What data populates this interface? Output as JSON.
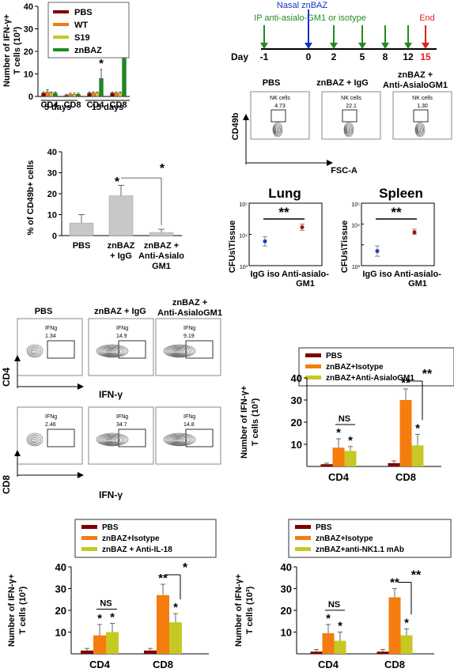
{
  "colors": {
    "pbs": "#7f0000",
    "wt": "#f07a10",
    "s19": "#c6c62a",
    "znbaz": "#1f8a1f",
    "isotype": "#f57c0f",
    "treated": "#c7c824",
    "gray_bar": "#c8c8c8",
    "dark_bar": "#a6a6a6",
    "nasal_arrow": "#1432c8",
    "ip_arrow": "#228b22",
    "end_arrow": "#e02020",
    "lung_dot_1": "#1a3ad0",
    "lung_dot_2": "#a01010"
  },
  "panelA": {
    "ylabel_1": "Number  of IFN-γ+",
    "ylabel_2": "T cells (10³)",
    "legend": [
      "PBS",
      "WT",
      "S19",
      "znBAZ"
    ],
    "groups": [
      "CD4",
      "CD8",
      "CD4",
      "CD8"
    ],
    "periods": [
      "5 days",
      "15 days"
    ],
    "stars": [
      "*",
      "**"
    ]
  },
  "timeline": {
    "nasal_label": "Nasal znBAZ",
    "ip_label": "IP anti-asialo-GM1 or isotype",
    "end_label": "End",
    "day_label": "Day",
    "days": [
      "-1",
      "0",
      "2",
      "5",
      "8",
      "12",
      "15"
    ]
  },
  "flowNK": {
    "titles": [
      "PBS",
      "znBAZ + IgG",
      "znBAZ +"
    ],
    "title_line2": "Anti-AsialoGM1",
    "gate_label": "NK cells",
    "values": [
      "4.73",
      "22.1",
      "1.30"
    ],
    "ylabel": "CD49b",
    "xlabel": "FSC-A"
  },
  "panelCD49": {
    "ylabel": "% of CD49b+ cells",
    "xlabels": [
      [
        "PBS"
      ],
      [
        "znBAZ",
        "+ IgG"
      ],
      [
        "znBAZ +",
        "Anti-Asialo",
        "GM1"
      ]
    ],
    "stars": [
      "*",
      "*"
    ]
  },
  "cfu": {
    "ylabel": "CFUs\\Tissue",
    "titles": [
      "Lung",
      "Spleen"
    ],
    "xlabels": [
      [
        "IgG iso"
      ],
      [
        "Anti-asialo-",
        "GM1"
      ]
    ],
    "stars": "**",
    "ticks": [
      "10⁵",
      "10⁴",
      "10³"
    ]
  },
  "flowIFN": {
    "titles": [
      "PBS",
      "znBAZ + IgG",
      "znBAZ +"
    ],
    "title_line2": "Anti-AsialoGM1",
    "gate_label": "IFNg",
    "cd4_values": [
      "1.34",
      "14.9",
      "9.19"
    ],
    "cd8_values": [
      "2.46",
      "34.7",
      "14.8"
    ],
    "cd4_label": "CD4",
    "cd8_label": "CD8",
    "xlabel": "IFN-γ"
  },
  "yaxis_ifn": {
    "line1": "Number  of IFN-γ+",
    "line2": "T cells (10³)"
  },
  "groupLabels": [
    "CD4",
    "CD8"
  ],
  "sigLabels": {
    "ns": "NS",
    "one": "*",
    "two": "**"
  },
  "chart_data": [
    {
      "type": "bar",
      "id": "panelA",
      "categories": [
        "CD4 5 days",
        "CD8 5 days",
        "CD4 15 days",
        "CD8 15 days"
      ],
      "series": [
        {
          "name": "PBS",
          "values": [
            1.5,
            0.5,
            1.5,
            1.5
          ],
          "errors": [
            0.5,
            0.5,
            0.5,
            0.5
          ]
        },
        {
          "name": "WT",
          "values": [
            2.0,
            1.0,
            1.5,
            1.5
          ],
          "errors": [
            1.0,
            0.5,
            0.5,
            0.5
          ]
        },
        {
          "name": "S19",
          "values": [
            1.5,
            1.0,
            1.5,
            1.5
          ],
          "errors": [
            0.5,
            0.5,
            0.5,
            0.5
          ]
        },
        {
          "name": "znBAZ",
          "values": [
            1.5,
            1.0,
            8.0,
            26.5
          ],
          "errors": [
            0.5,
            0.5,
            4.0,
            6.0
          ]
        }
      ],
      "ylim": [
        0,
        40
      ],
      "yticks": [
        0,
        10,
        20,
        30,
        40
      ]
    },
    {
      "type": "bar",
      "id": "panelCD49",
      "categories": [
        "PBS",
        "znBAZ + IgG",
        "znBAZ + Anti-Asialo GM1"
      ],
      "values": [
        6,
        19,
        1.5
      ],
      "errors": [
        4,
        5,
        1.5
      ],
      "ylim": [
        0,
        40
      ],
      "yticks": [
        0,
        10,
        20,
        30,
        40
      ]
    },
    {
      "type": "scatter",
      "id": "lung",
      "categories": [
        "IgG iso",
        "Anti-asialo-GM1"
      ],
      "values": [
        6000,
        17000
      ],
      "errors_log_low": [
        0.15,
        0.1
      ],
      "errors_log_high": [
        0.15,
        0.1
      ],
      "ylim": [
        1000,
        100000
      ],
      "yscale": "log"
    },
    {
      "type": "scatter",
      "id": "spleen",
      "categories": [
        "IgG iso",
        "Anti-asialo-GM1"
      ],
      "values": [
        500,
        4000
      ],
      "errors_log_low": [
        0.25,
        0.1
      ],
      "errors_log_high": [
        0.25,
        0.15
      ],
      "ylim": [
        100,
        100000
      ],
      "yscale": "log"
    },
    {
      "type": "bar",
      "id": "asialo_ifn",
      "categories": [
        "CD4",
        "CD8"
      ],
      "series": [
        {
          "name": "PBS",
          "values": [
            1,
            1.5
          ],
          "errors": [
            0.5,
            1
          ]
        },
        {
          "name": "znBAZ+Isotype",
          "values": [
            8.5,
            30
          ],
          "errors": [
            4,
            5
          ]
        },
        {
          "name": "znBAZ+Anti-AsialoGM1",
          "values": [
            7,
            9.5
          ],
          "errors": [
            2,
            5
          ]
        }
      ],
      "ylim": [
        0,
        40
      ],
      "yticks": [
        10,
        20,
        30,
        40
      ]
    },
    {
      "type": "bar",
      "id": "il18",
      "categories": [
        "CD4",
        "CD8"
      ],
      "series": [
        {
          "name": "PBS",
          "values": [
            1.5,
            1.5
          ],
          "errors": [
            1,
            1
          ]
        },
        {
          "name": "znBAZ+Isotype",
          "values": [
            8.5,
            27
          ],
          "errors": [
            5,
            5
          ]
        },
        {
          "name": "znBAZ + Anti-IL-18",
          "values": [
            10,
            14.5
          ],
          "errors": [
            4,
            4
          ]
        }
      ],
      "ylim": [
        0,
        40
      ],
      "yticks": [
        10,
        20,
        30,
        40
      ]
    },
    {
      "type": "bar",
      "id": "nk11",
      "categories": [
        "CD4",
        "CD8"
      ],
      "series": [
        {
          "name": "PBS",
          "values": [
            1,
            1
          ],
          "errors": [
            1,
            1
          ]
        },
        {
          "name": "znBAZ+Isotype",
          "values": [
            9.5,
            26
          ],
          "errors": [
            4,
            4
          ]
        },
        {
          "name": "znBAZ+anti-NK1.1 mAb",
          "values": [
            6,
            8.5
          ],
          "errors": [
            4,
            3
          ]
        }
      ],
      "ylim": [
        0,
        40
      ],
      "yticks": [
        10,
        20,
        30,
        40
      ]
    }
  ]
}
